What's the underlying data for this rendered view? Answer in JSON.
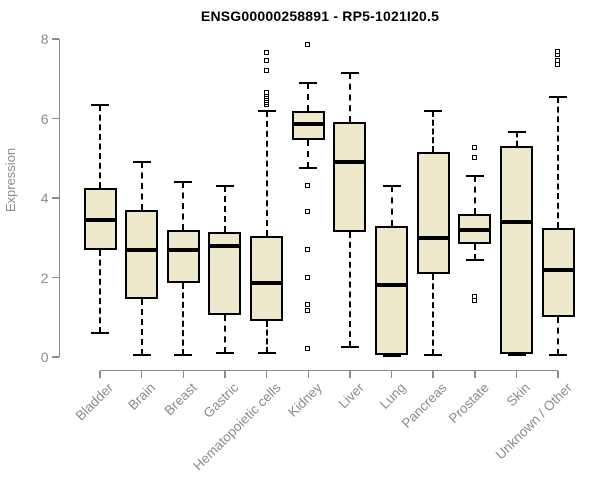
{
  "chart_data": {
    "type": "boxplot",
    "title": "ENSG00000258891 - RP5-1021I20.5",
    "ylabel": "Expression",
    "xlabel": "",
    "ylim": [
      0,
      8
    ],
    "yticks": [
      0,
      2,
      4,
      6,
      8
    ],
    "grid": false,
    "legend": "none",
    "colors": {
      "box_fill": "#EEE8CD",
      "box_border": "#000000",
      "median": "#000000",
      "axis": "#8c8c8c",
      "tick_text": "#8c8c8c",
      "title_text": "#000000",
      "background": "#ffffff"
    },
    "categories": [
      "Bladder",
      "Brain",
      "Breast",
      "Gastric",
      "Hematopoietic cells",
      "Kidney",
      "Liver",
      "Lung",
      "Pancreas",
      "Prostate",
      "Skin",
      "Unknown / Other"
    ],
    "boxes": [
      {
        "label": "Bladder",
        "whisker_low": 0.6,
        "q1": 2.7,
        "median": 3.45,
        "q3": 4.25,
        "whisker_high": 6.35,
        "outliers_low": [],
        "outliers_high": []
      },
      {
        "label": "Brain",
        "whisker_low": 0.05,
        "q1": 1.45,
        "median": 2.7,
        "q3": 3.7,
        "whisker_high": 4.9,
        "outliers_low": [],
        "outliers_high": []
      },
      {
        "label": "Breast",
        "whisker_low": 0.05,
        "q1": 1.85,
        "median": 2.7,
        "q3": 3.2,
        "whisker_high": 4.4,
        "outliers_low": [],
        "outliers_high": []
      },
      {
        "label": "Gastric",
        "whisker_low": 0.1,
        "q1": 1.05,
        "median": 2.8,
        "q3": 3.15,
        "whisker_high": 4.3,
        "outliers_low": [],
        "outliers_high": []
      },
      {
        "label": "Hematopoietic cells",
        "whisker_low": 0.1,
        "q1": 0.9,
        "median": 1.85,
        "q3": 3.05,
        "whisker_high": 6.2,
        "outliers_low": [],
        "outliers_high": [
          6.35,
          6.4,
          6.45,
          6.5,
          6.55,
          6.6,
          6.65,
          7.2,
          7.45,
          7.65
        ]
      },
      {
        "label": "Kidney",
        "whisker_low": 4.75,
        "q1": 5.45,
        "median": 5.85,
        "q3": 6.2,
        "whisker_high": 6.9,
        "outliers_low": [
          4.3,
          3.65,
          2.7,
          2.0,
          1.3,
          1.15,
          0.2
        ],
        "outliers_high": [
          7.85
        ]
      },
      {
        "label": "Liver",
        "whisker_low": 0.25,
        "q1": 3.15,
        "median": 4.9,
        "q3": 5.9,
        "whisker_high": 7.15,
        "outliers_low": [],
        "outliers_high": []
      },
      {
        "label": "Lung",
        "whisker_low": 0.03,
        "q1": 0.05,
        "median": 1.8,
        "q3": 3.3,
        "whisker_high": 4.3,
        "outliers_low": [],
        "outliers_high": []
      },
      {
        "label": "Pancreas",
        "whisker_low": 0.05,
        "q1": 2.1,
        "median": 3.0,
        "q3": 5.15,
        "whisker_high": 6.2,
        "outliers_low": [],
        "outliers_high": []
      },
      {
        "label": "Prostate",
        "whisker_low": 2.45,
        "q1": 2.85,
        "median": 3.2,
        "q3": 3.6,
        "whisker_high": 4.55,
        "outliers_low": [
          1.5,
          1.42
        ],
        "outliers_high": [
          5.25,
          5.0
        ]
      },
      {
        "label": "Skin",
        "whisker_low": 0.05,
        "q1": 0.07,
        "median": 3.4,
        "q3": 5.3,
        "whisker_high": 5.65,
        "outliers_low": [],
        "outliers_high": []
      },
      {
        "label": "Unknown / Other",
        "whisker_low": 0.05,
        "q1": 1.0,
        "median": 2.2,
        "q3": 3.25,
        "whisker_high": 6.55,
        "outliers_low": [],
        "outliers_high": [
          7.35,
          7.45,
          7.6,
          7.67
        ]
      }
    ]
  }
}
